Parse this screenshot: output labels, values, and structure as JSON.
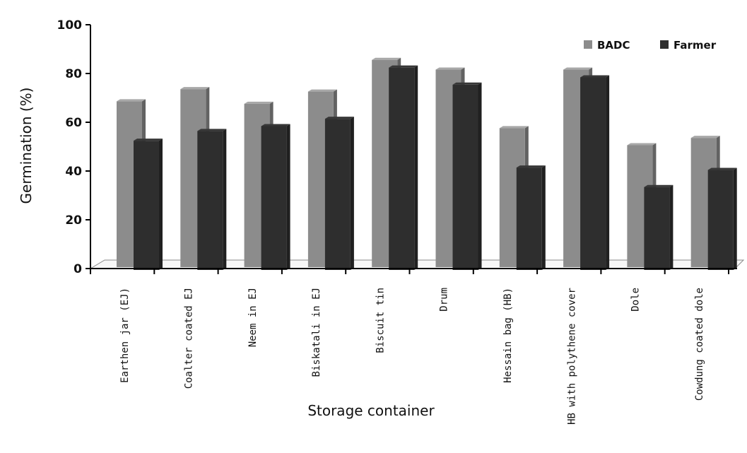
{
  "chart_data": {
    "type": "bar",
    "xlabel": "Storage container",
    "ylabel": "Germination (%)",
    "ylim": [
      0,
      100
    ],
    "yticks": [
      0,
      20,
      40,
      60,
      80,
      100
    ],
    "grid": false,
    "legend_position": "top-right",
    "categories": [
      "Earthen jar (EJ)",
      "Coalter coated EJ",
      "Neem in EJ",
      "Biskatali in EJ",
      "Biscuit tin",
      "Drum",
      "Hessain bag (HB)",
      "HB with polythene cover",
      "Dole",
      "Cowdung coated dole"
    ],
    "series": [
      {
        "name": "BADC",
        "color": "#8c8c8c",
        "values": [
          68,
          73,
          67,
          72,
          85,
          81,
          57,
          81,
          50,
          53
        ]
      },
      {
        "name": "Farmer",
        "color": "#2e2e2e",
        "values": [
          53,
          57,
          59,
          62,
          83,
          76,
          42,
          79,
          34,
          41
        ]
      }
    ]
  }
}
